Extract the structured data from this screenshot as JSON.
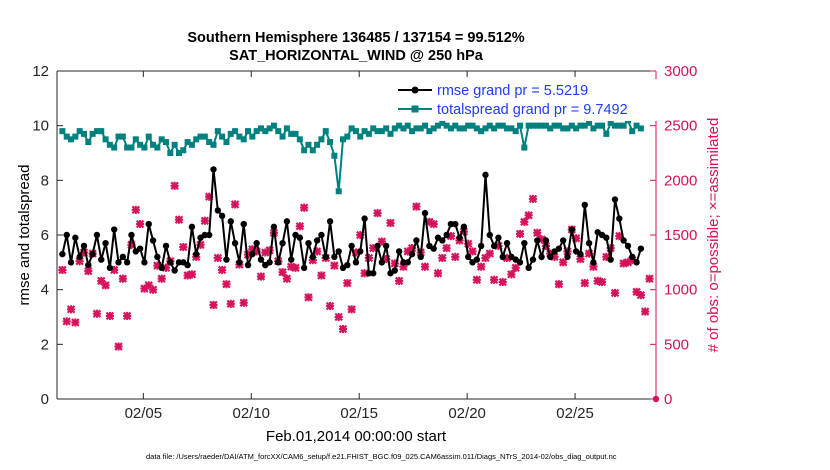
{
  "chart_data": {
    "type": "line",
    "title_line1": "Southern Hemisphere 136485 / 137154 = 99.512%",
    "title_line2": "SAT_HORIZONTAL_WIND @ 250 hPa",
    "xlabel": "Feb.01,2014 00:00:00 start",
    "ylabel_left": "rmse and totalspread",
    "ylabel_right": "# of obs: o=possible; ×=assimilated",
    "footnote": "data file: /Users/raeder/DAI/ATM_forcXX/CAM6_setup/f.e21.FHIST_BGC.f09_025.CAM6assim.011/Diags_NTrS_2014-02/obs_diag_output.nc",
    "xlim": [
      1,
      28.75
    ],
    "ylim_left": [
      0,
      12
    ],
    "ylim_right": [
      0,
      3000
    ],
    "x_ticks": [
      5,
      10,
      15,
      20,
      25
    ],
    "x_tick_labels": [
      "02/05",
      "02/10",
      "02/15",
      "02/20",
      "02/25"
    ],
    "y_left_ticks": [
      "0",
      "2",
      "4",
      "6",
      "8",
      "10",
      "12"
    ],
    "y_right_ticks": [
      "0",
      "500",
      "1000",
      "1500",
      "2000",
      "2500",
      "3000"
    ],
    "legend_location": "top-right",
    "colors": {
      "rmse": "#000000",
      "spread": "#00807e",
      "obs": "#d6125d",
      "axis_right": "#d6125d"
    },
    "series": [
      {
        "name": "rmse grand pr = 5.5219",
        "color": "#000000",
        "values": [
          5.3,
          6.0,
          5.0,
          5.9,
          5.2,
          5.6,
          4.9,
          5.3,
          6.0,
          5.1,
          5.7,
          4.8,
          6.2,
          5.0,
          5.2,
          5.0,
          6.0,
          5.4,
          5.5,
          5.0,
          6.4,
          5.8,
          5.2,
          4.8,
          5.6,
          5.0,
          4.7,
          5.0,
          5.0,
          4.9,
          6.3,
          5.3,
          5.9,
          6.0,
          6.0,
          8.4,
          6.9,
          6.7,
          5.1,
          6.5,
          5.7,
          5.0,
          6.4,
          4.9,
          5.3,
          5.7,
          5.1,
          4.9,
          5.0,
          6.3,
          5.0,
          5.7,
          6.5,
          5.1,
          6.0,
          5.9,
          4.8,
          5.7,
          5.2,
          5.8,
          6.0,
          5.2,
          6.5,
          5.2,
          5.4,
          4.8,
          4.9,
          5.6,
          5.0,
          5.4,
          6.6,
          4.6,
          4.6,
          5.6,
          5.0,
          5.6,
          4.6,
          4.7,
          5.4,
          5.0,
          5.0,
          5.3,
          5.8,
          5.2,
          6.8,
          5.6,
          5.5,
          5.9,
          5.8,
          6.0,
          6.4,
          6.4,
          5.9,
          6.3,
          5.2,
          5.0,
          5.1,
          5.6,
          8.2,
          6.0,
          5.6,
          5.9,
          5.2,
          5.7,
          5.2,
          5.1,
          5.0,
          5.7,
          4.8,
          5.1,
          5.8,
          5.2,
          5.8,
          5.2,
          5.4,
          5.5,
          5.8,
          5.2,
          6.2,
          5.4,
          5.3,
          7.1,
          5.7,
          5.0,
          6.1,
          6.0,
          5.9,
          5.1,
          7.3,
          6.6,
          5.8,
          5.6,
          5.2,
          5.0,
          5.5
        ],
        "marker": "filled-circle"
      },
      {
        "name": "totalspread grand pr = 9.7492",
        "color": "#00807e",
        "values": [
          9.8,
          9.6,
          9.5,
          9.6,
          9.8,
          9.7,
          9.4,
          9.7,
          9.8,
          9.8,
          9.5,
          9.3,
          9.2,
          9.6,
          9.6,
          9.2,
          9.2,
          9.5,
          9.3,
          9.2,
          9.6,
          9.3,
          9.2,
          9.5,
          9.4,
          9.0,
          9.3,
          9.0,
          9.1,
          9.4,
          9.3,
          9.5,
          9.6,
          9.6,
          9.4,
          9.3,
          9.8,
          9.6,
          9.4,
          9.7,
          9.8,
          9.6,
          9.5,
          9.8,
          9.6,
          9.8,
          9.9,
          9.8,
          9.9,
          10.0,
          9.8,
          9.6,
          9.9,
          9.7,
          9.7,
          9.5,
          9.1,
          9.3,
          9.1,
          9.3,
          9.5,
          9.8,
          9.4,
          8.9,
          7.6,
          9.5,
          9.6,
          9.9,
          9.8,
          9.6,
          9.8,
          9.7,
          9.9,
          9.8,
          9.8,
          9.9,
          9.7,
          9.9,
          10.0,
          9.9,
          10.0,
          9.8,
          9.9,
          9.9,
          10.0,
          9.8,
          9.9,
          10.0,
          10.1,
          10.0,
          9.9,
          10.0,
          9.9,
          9.9,
          10.0,
          10.0,
          9.9,
          9.8,
          9.9,
          10.0,
          9.9,
          10.0,
          10.0,
          9.9,
          9.9,
          9.8,
          10.0,
          9.2,
          10.0,
          10.0,
          10.0,
          10.0,
          10.0,
          9.9,
          10.0,
          10.0,
          9.9,
          9.9,
          10.0,
          9.9,
          10.0,
          10.0,
          10.1,
          9.9,
          10.0,
          10.0,
          9.7,
          10.1,
          10.0,
          10.0,
          10.0,
          10.2,
          9.8,
          10.0,
          9.9
        ],
        "marker": "filled-square"
      },
      {
        "name": "obs assimilated",
        "axis": "right",
        "color": "#d6125d",
        "values": [
          1180,
          710,
          820,
          700,
          1260,
          1340,
          1170,
          1330,
          780,
          1080,
          1040,
          760,
          1180,
          480,
          1100,
          760,
          1410,
          1730,
          1600,
          1010,
          1040,
          1000,
          1220,
          1100,
          1200,
          1260,
          1950,
          1640,
          1390,
          1130,
          1140,
          1300,
          1410,
          1630,
          1850,
          860,
          1290,
          1180,
          1050,
          870,
          1780,
          1230,
          880,
          1320,
          1370,
          1350,
          1120,
          1340,
          1360,
          1520,
          1260,
          1160,
          1100,
          1210,
          1200,
          1580,
          1750,
          930,
          1270,
          1350,
          1130,
          1290,
          850,
          1220,
          750,
          640,
          1060,
          820,
          1340,
          1500,
          1150,
          1290,
          1380,
          1700,
          1440,
          1280,
          1610,
          1240,
          1080,
          1210,
          1350,
          1380,
          1760,
          1340,
          1210,
          1620,
          1600,
          1150,
          1290,
          1380,
          1490,
          1300,
          1450,
          1530,
          1420,
          1350,
          1090,
          1210,
          1290,
          1330,
          1090,
          1400,
          1070,
          1290,
          1140,
          1200,
          1510,
          1620,
          1680,
          1830,
          1520,
          1460,
          1400,
          1330,
          1300,
          1050,
          1250,
          1350,
          1550,
          1470,
          1280,
          1060,
          1330,
          1210,
          1080,
          1070,
          1300,
          1380,
          970,
          1490,
          1240,
          1250,
          1270,
          980,
          950,
          800,
          1100
        ]
      }
    ]
  }
}
